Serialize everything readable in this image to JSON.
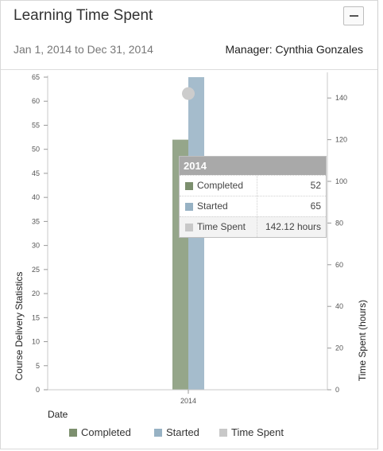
{
  "widget": {
    "title": "Learning Time Spent",
    "collapse_icon": "minus-icon",
    "date_range": "Jan 1, 2014 to Dec 31, 2014",
    "manager": "Manager: Cynthia Gonzales"
  },
  "colors": {
    "completed": "#95a68a",
    "started": "#a5bccc",
    "time_spent": "#cccccc"
  },
  "chart_data": {
    "type": "bar",
    "categories": [
      "2014"
    ],
    "series": [
      {
        "name": "Completed",
        "values": [
          52
        ],
        "axis": "left"
      },
      {
        "name": "Started",
        "values": [
          65
        ],
        "axis": "left"
      },
      {
        "name": "Time Spent",
        "values": [
          142.12
        ],
        "axis": "right",
        "marker": "point"
      }
    ],
    "xlabel": "Date",
    "ylabel": "Course Delivery Statistics",
    "ylabel_right": "Time Spent (hours)",
    "ylim": [
      0,
      65
    ],
    "ylim_right": [
      0,
      150
    ],
    "yticks": [
      0,
      5,
      10,
      15,
      20,
      25,
      30,
      35,
      40,
      45,
      50,
      55,
      60,
      65
    ],
    "yticks_right": [
      0,
      20,
      40,
      60,
      80,
      100,
      120,
      140
    ],
    "legend_position": "bottom",
    "grid": false
  },
  "tooltip": {
    "header": "2014",
    "rows": [
      {
        "label": "Completed",
        "value": "52"
      },
      {
        "label": "Started",
        "value": "65"
      },
      {
        "label": "Time Spent",
        "value": "142.12 hours"
      }
    ]
  }
}
